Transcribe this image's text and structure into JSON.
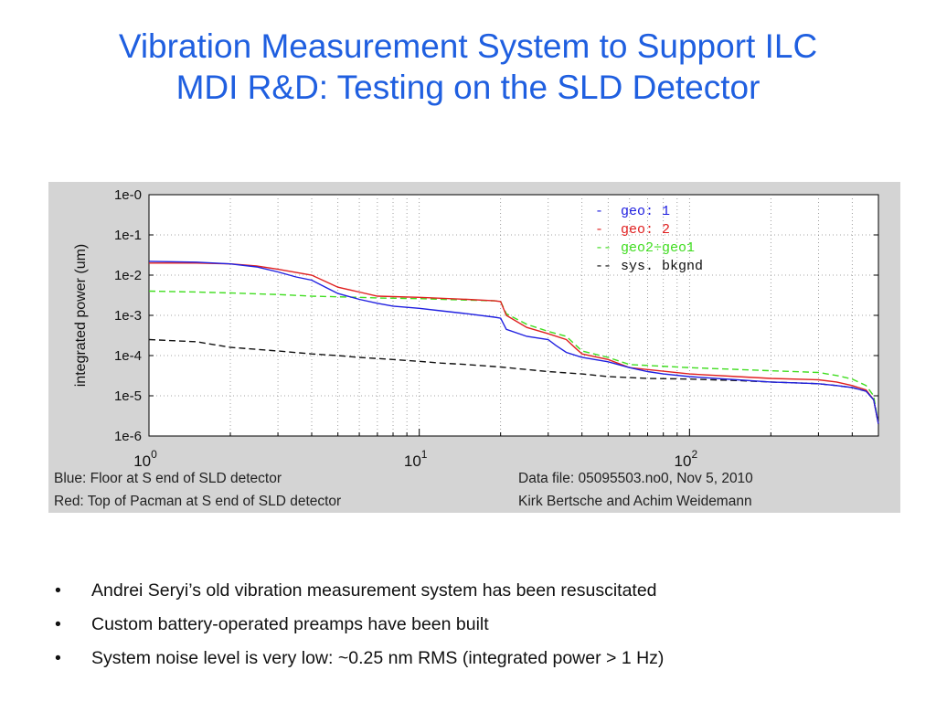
{
  "slide": {
    "title_line1": "Vibration Measurement System to Support ILC",
    "title_line2": "MDI R&D: Testing on the SLD Detector",
    "colors": {
      "title": "#1f5fe0",
      "figure_bg": "#d4d4d4"
    }
  },
  "captions": {
    "left_1": "Blue: Floor at S end of SLD detector",
    "left_2": "Red: Top of Pacman at S end of SLD detector",
    "right_1": "Data file: 05095503.no0, Nov 5, 2010",
    "right_2": "Kirk Bertsche and Achim Weidemann"
  },
  "bullets": [
    "Andrei Seryi’s old vibration measurement system has been resuscitated",
    "Custom battery-operated preamps have been built",
    "System noise level is very low: ~0.25 nm RMS (integrated power > 1 Hz)"
  ],
  "bullet_glyph": "•",
  "chart_data": {
    "type": "line",
    "title": "",
    "xlabel": "",
    "ylabel": "integrated power (um)",
    "xscale": "log",
    "yscale": "log",
    "xlim": [
      1,
      500
    ],
    "ylim": [
      1e-06,
      1
    ],
    "grid": true,
    "legend_position": "top-right",
    "x_ticks": [
      {
        "value": 1,
        "base": "10",
        "exp": "0"
      },
      {
        "value": 10,
        "base": "10",
        "exp": "1"
      },
      {
        "value": 100,
        "base": "10",
        "exp": "2"
      }
    ],
    "y_ticks": [
      {
        "value": 1,
        "label": "1e-0"
      },
      {
        "value": 0.1,
        "label": "1e-1"
      },
      {
        "value": 0.01,
        "label": "1e-2"
      },
      {
        "value": 0.001,
        "label": "1e-3"
      },
      {
        "value": 0.0001,
        "label": "1e-4"
      },
      {
        "value": 1e-05,
        "label": "1e-5"
      },
      {
        "value": 1e-06,
        "label": "1e-6"
      }
    ],
    "series": [
      {
        "name": "geo: 1",
        "legend_marker": "-",
        "color": "#2020e0",
        "dash": "solid",
        "x": [
          1,
          1.5,
          2,
          2.5,
          3,
          3.5,
          4,
          4.5,
          5,
          6,
          7,
          8,
          10,
          12,
          15,
          19,
          20,
          21,
          25,
          30,
          32,
          35,
          40,
          50,
          60,
          70,
          80,
          100,
          150,
          200,
          300,
          350,
          400,
          450,
          480,
          500
        ],
        "y": [
          0.022,
          0.021,
          0.019,
          0.016,
          0.012,
          0.009,
          0.0075,
          0.005,
          0.0035,
          0.0025,
          0.002,
          0.0017,
          0.0015,
          0.0013,
          0.0011,
          0.0009,
          0.00085,
          0.00045,
          0.0003,
          0.00025,
          0.00018,
          0.00012,
          9e-05,
          7e-05,
          5e-05,
          4e-05,
          3.5e-05,
          3e-05,
          2.5e-05,
          2.2e-05,
          2e-05,
          1.8e-05,
          1.6e-05,
          1.3e-05,
          8e-06,
          2e-06
        ]
      },
      {
        "name": "geo: 2",
        "legend_marker": "-",
        "color": "#e02020",
        "dash": "solid",
        "x": [
          1,
          1.5,
          2,
          2.5,
          3,
          4,
          5,
          6,
          7,
          10,
          15,
          19,
          20,
          21,
          25,
          30,
          35,
          38,
          40,
          50,
          60,
          70,
          100,
          150,
          200,
          300,
          350,
          400,
          450,
          480,
          500
        ],
        "y": [
          0.02,
          0.02,
          0.019,
          0.017,
          0.014,
          0.01,
          0.005,
          0.0038,
          0.003,
          0.0028,
          0.0025,
          0.0023,
          0.0022,
          0.001,
          0.0005,
          0.00035,
          0.00025,
          0.00015,
          0.00011,
          8e-05,
          5e-05,
          4.5e-05,
          3.5e-05,
          3e-05,
          2.7e-05,
          2.5e-05,
          2.2e-05,
          1.8e-05,
          1.4e-05,
          8e-06,
          2e-06
        ]
      },
      {
        "name": "geo2÷geo1",
        "legend_marker": "--",
        "color": "#40dd20",
        "dash": "dashed",
        "x": [
          1,
          1.5,
          2,
          3,
          4,
          5,
          6,
          7,
          10,
          15,
          19,
          20,
          21,
          25,
          30,
          35,
          38,
          40,
          50,
          60,
          100,
          200,
          300,
          350,
          400,
          450,
          480,
          500
        ],
        "y": [
          0.004,
          0.0038,
          0.0036,
          0.0033,
          0.003,
          0.0029,
          0.0028,
          0.0027,
          0.0026,
          0.0024,
          0.0023,
          0.0022,
          0.0011,
          0.0006,
          0.0004,
          0.0003,
          0.00018,
          0.00013,
          9e-05,
          6e-05,
          5e-05,
          4.2e-05,
          3.8e-05,
          3.2e-05,
          2.6e-05,
          1.8e-05,
          1e-05,
          2e-06
        ]
      },
      {
        "name": "sys. bkgnd",
        "legend_marker": "--",
        "color": "#111111",
        "dash": "dashed",
        "x": [
          1,
          1.5,
          2,
          3,
          4,
          5,
          6,
          8,
          10,
          12,
          15,
          20,
          25,
          30,
          40,
          50,
          70,
          100,
          150,
          200,
          300,
          350,
          400,
          450,
          480,
          500
        ],
        "y": [
          0.00025,
          0.00022,
          0.00016,
          0.00013,
          0.00011,
          0.0001,
          9e-05,
          8e-05,
          7.2e-05,
          6.5e-05,
          6e-05,
          5.2e-05,
          4.5e-05,
          4e-05,
          3.5e-05,
          3e-05,
          2.7e-05,
          2.6e-05,
          2.4e-05,
          2.2e-05,
          2e-05,
          1.8e-05,
          1.6e-05,
          1.3e-05,
          8e-06,
          2e-06
        ]
      }
    ]
  }
}
